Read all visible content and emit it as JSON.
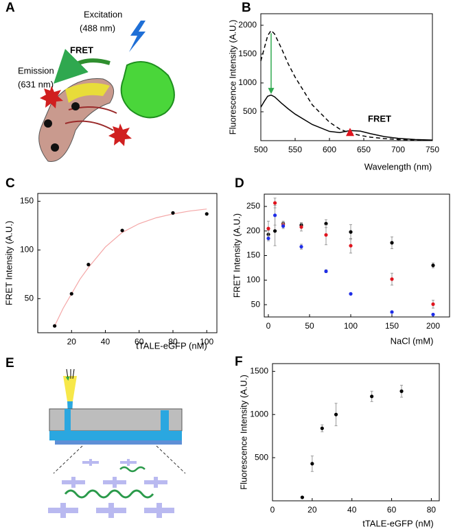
{
  "panel_a": {
    "label": "A",
    "excitation": "Excitation",
    "excitation_wavelength": "(488 nm)",
    "fret": "FRET",
    "emission": "Emission",
    "emission_wavelength": "(631 nm)"
  },
  "panel_e": {
    "label": "E"
  },
  "chart_data": [
    {
      "type": "line",
      "panel": "B",
      "xlabel": "Wavelength (nm)",
      "ylabel": "Fluorescence Intensity (A.U.)",
      "annotation": "FRET",
      "x": [
        500,
        505,
        510,
        515,
        520,
        530,
        540,
        550,
        575,
        600,
        615,
        630,
        645,
        660,
        680,
        700,
        725,
        750
      ],
      "series": [
        {
          "color": "#000000",
          "dashed": true,
          "values": [
            1380,
            1600,
            1820,
            1910,
            1850,
            1600,
            1330,
            1100,
            620,
            320,
            200,
            130,
            90,
            60,
            35,
            20,
            10,
            5
          ]
        },
        {
          "color": "#000000",
          "dashed": false,
          "values": [
            580,
            680,
            770,
            790,
            760,
            650,
            550,
            460,
            280,
            160,
            140,
            175,
            165,
            120,
            70,
            40,
            20,
            10
          ]
        }
      ],
      "xlim": [
        500,
        750
      ],
      "xticks": [
        500,
        550,
        600,
        650,
        700,
        750
      ],
      "ylim": [
        0,
        2200
      ],
      "yticks": [
        500,
        1000,
        1500,
        2000
      ]
    },
    {
      "type": "scatter",
      "panel": "C",
      "xlabel": "tTALE-eGFP (nM)",
      "ylabel": "FRET Intensity (A.U.)",
      "x": [
        10,
        20,
        30,
        50,
        80,
        100
      ],
      "values": [
        22,
        55,
        85,
        120,
        138,
        137
      ],
      "color": "#000000",
      "fit_x": [
        10,
        15,
        20,
        25,
        30,
        40,
        50,
        60,
        70,
        80,
        90,
        100
      ],
      "fit_values": [
        22,
        40,
        55,
        70,
        82,
        103,
        118,
        127,
        133,
        137,
        140,
        142
      ],
      "fit_color": "#f4a6a6",
      "xlim": [
        0,
        106
      ],
      "xticks": [
        20,
        40,
        60,
        80,
        100
      ],
      "ylim": [
        15,
        158
      ],
      "yticks": [
        50,
        100,
        150
      ]
    },
    {
      "type": "scatter",
      "panel": "D",
      "xlabel": "NaCl (mM)",
      "ylabel": "FRET Intensity (A.U.)",
      "x": [
        0,
        8,
        18,
        40,
        70,
        100,
        150,
        200
      ],
      "series": [
        {
          "color": "#000000",
          "values": [
            193,
            200,
            215,
            212,
            215,
            198,
            176,
            130
          ],
          "errors": [
            8,
            30,
            5,
            5,
            8,
            15,
            12,
            5
          ]
        },
        {
          "color": "#e0141e",
          "values": [
            205,
            257,
            213,
            208,
            192,
            170,
            102,
            51
          ],
          "errors": [
            15,
            10,
            5,
            8,
            20,
            15,
            12,
            8
          ]
        },
        {
          "color": "#1f2ee8",
          "values": [
            185,
            232,
            210,
            168,
            118,
            72,
            35,
            30
          ],
          "errors": [
            5,
            20,
            5,
            5,
            3,
            2,
            2,
            2
          ]
        }
      ],
      "xlim": [
        -5,
        220
      ],
      "xticks": [
        0,
        50,
        100,
        150,
        200
      ],
      "ylim": [
        25,
        275
      ],
      "yticks": [
        50,
        100,
        150,
        200,
        250
      ]
    },
    {
      "type": "scatter",
      "panel": "F",
      "xlabel": "tTALE-eGFP (nM)",
      "ylabel": "Fluorescence Intensity (A.U.)",
      "x": [
        15,
        20,
        25,
        32,
        50,
        65
      ],
      "values": [
        40,
        430,
        840,
        1000,
        1210,
        1270
      ],
      "errors": [
        0,
        90,
        40,
        130,
        60,
        70
      ],
      "color": "#000000",
      "xlim": [
        0,
        84
      ],
      "xticks": [
        0,
        20,
        40,
        60,
        80
      ],
      "ylim": [
        0,
        1590
      ],
      "yticks": [
        500,
        1000,
        1500
      ]
    }
  ]
}
